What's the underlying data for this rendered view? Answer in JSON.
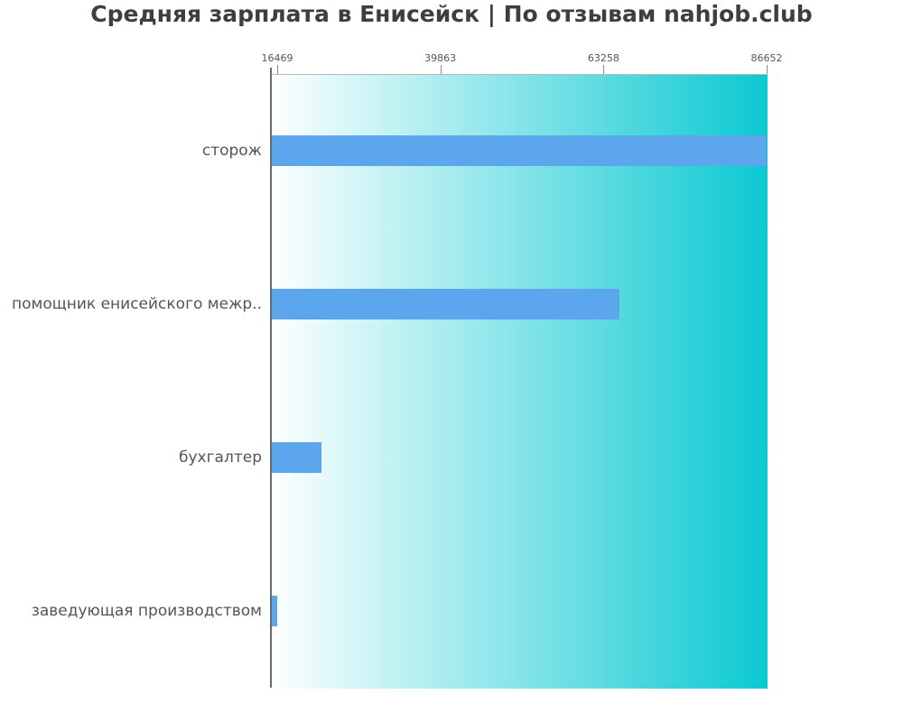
{
  "title": "Средняя зарплата в Енисейск | По отзывам nahjob.club",
  "colors": {
    "bar_fill": "#5CA6EE",
    "plot_gradient_start": "#FEFFFF",
    "plot_gradient_end": "#0BC9D2",
    "axis_line": "#6A6A6A",
    "tick_mark": "#8A8A8A",
    "tick_label_text": "#555555",
    "category_label_text": "#555555",
    "title_text": "#3E3E3E"
  },
  "chart_data": {
    "type": "bar",
    "orientation": "horizontal",
    "title": "Средняя зарплата в Енисейск | По отзывам nahjob.club",
    "categories": [
      "сторож",
      "помощник енисейского межр..",
      "бухгалтер",
      "заведующая производством"
    ],
    "values": [
      86652,
      65500,
      22800,
      16469
    ],
    "x_ticks": [
      16469,
      39863,
      63258,
      86652
    ],
    "x_tick_labels": [
      "16469",
      "39863",
      "63258",
      "86652"
    ],
    "xlim": [
      16469,
      86652
    ],
    "xlabel": "",
    "ylabel": "",
    "grid": false,
    "legend": false,
    "ticks_position": "top",
    "background": "horizontal white-to-cyan gradient inside plot area"
  }
}
